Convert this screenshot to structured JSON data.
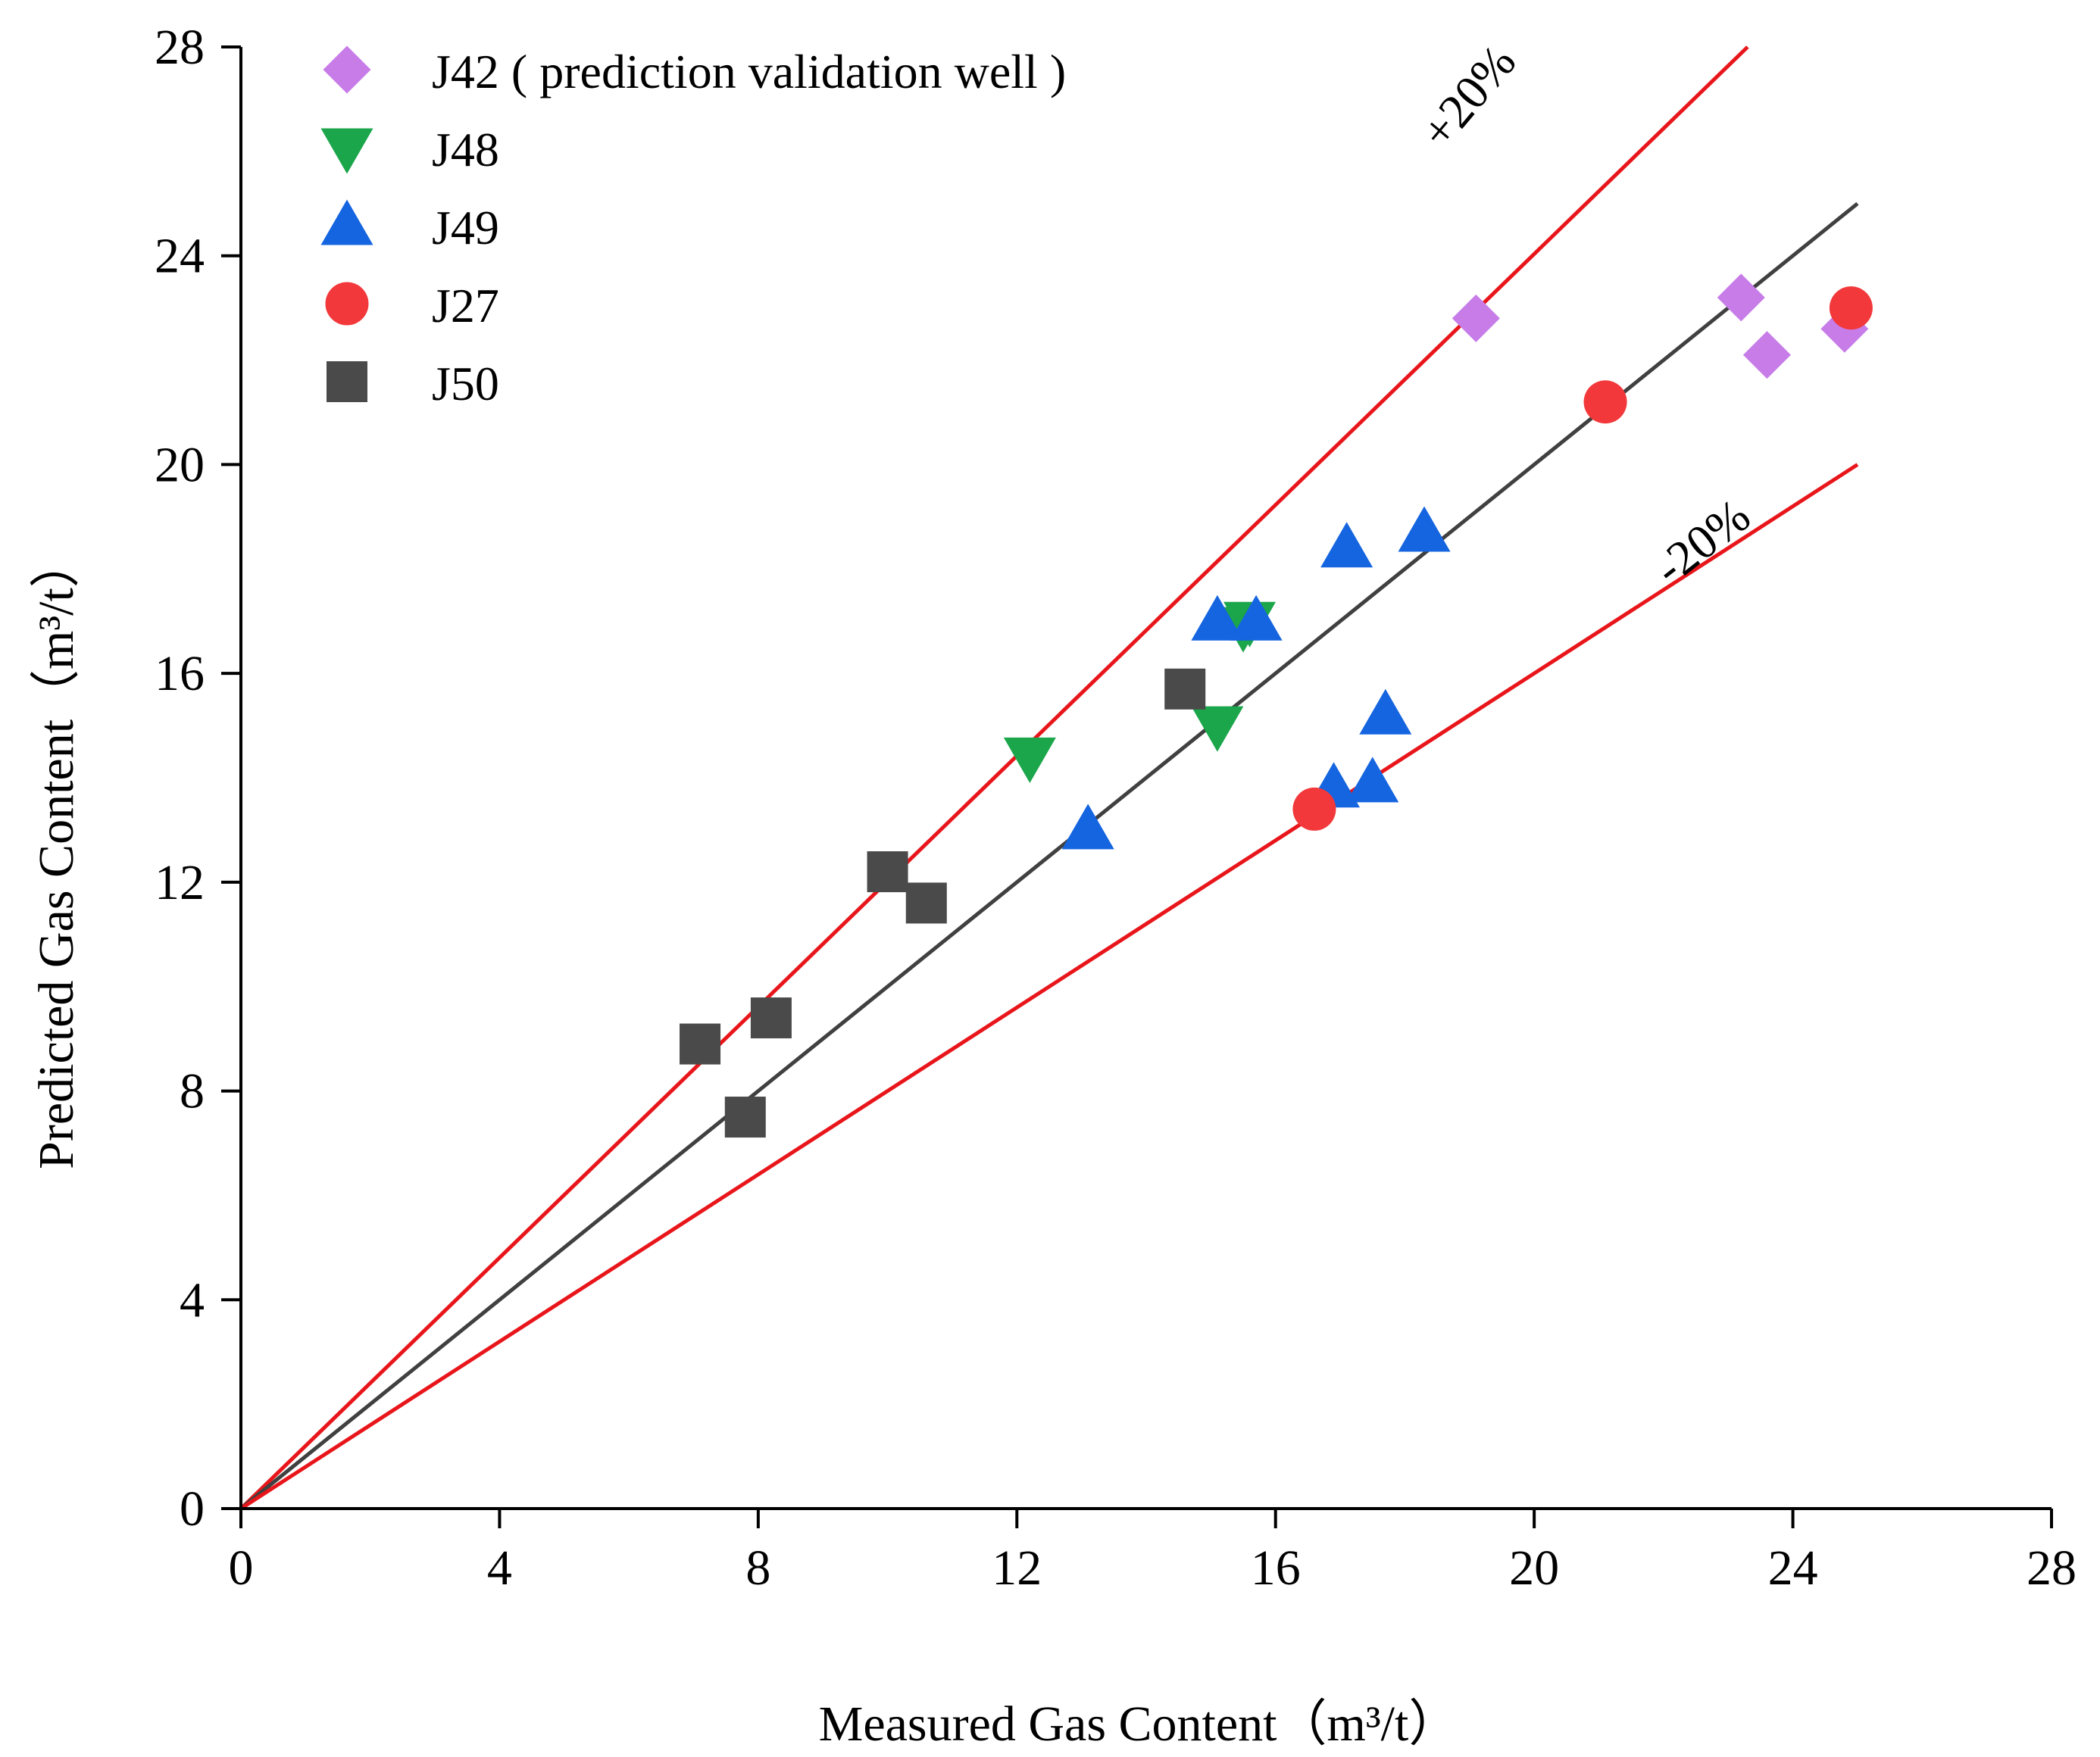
{
  "chart_data": {
    "type": "scatter",
    "title": "",
    "xlabel": "Measured Gas Content（m³/t）",
    "ylabel": "Predicted Gas Content（m³/t）",
    "xlim": [
      0,
      28
    ],
    "ylim": [
      0,
      28
    ],
    "xticks": [
      0,
      4,
      8,
      12,
      16,
      20,
      24,
      28
    ],
    "yticks": [
      0,
      4,
      8,
      12,
      16,
      20,
      24,
      28
    ],
    "legend_position": "top-left",
    "series": [
      {
        "name": "J42 ( prediction validation well )",
        "marker": "diamond",
        "color": "#C77CE8",
        "points": [
          [
            19.1,
            22.8
          ],
          [
            23.2,
            23.2
          ],
          [
            23.6,
            22.1
          ],
          [
            24.8,
            22.6
          ]
        ]
      },
      {
        "name": "J48",
        "marker": "triangle-down",
        "color": "#1BA64B",
        "points": [
          [
            12.2,
            14.4
          ],
          [
            15.1,
            15.0
          ],
          [
            15.6,
            17.0
          ],
          [
            15.5,
            16.9
          ]
        ]
      },
      {
        "name": "J49",
        "marker": "triangle-up",
        "color": "#1565E0",
        "points": [
          [
            13.1,
            13.0
          ],
          [
            15.1,
            17.0
          ],
          [
            15.7,
            17.0
          ],
          [
            17.1,
            18.4
          ],
          [
            18.3,
            18.7
          ],
          [
            17.7,
            15.2
          ],
          [
            16.9,
            13.8
          ],
          [
            17.5,
            13.9
          ]
        ]
      },
      {
        "name": "J27",
        "marker": "circle",
        "color": "#F2383A",
        "points": [
          [
            16.6,
            13.4
          ],
          [
            21.1,
            21.2
          ],
          [
            24.9,
            23.0
          ]
        ]
      },
      {
        "name": "J50",
        "marker": "square",
        "color": "#4A4A4A",
        "points": [
          [
            7.1,
            8.9
          ],
          [
            8.2,
            9.4
          ],
          [
            7.8,
            7.5
          ],
          [
            10.0,
            12.2
          ],
          [
            10.6,
            11.6
          ],
          [
            14.6,
            15.7
          ]
        ]
      }
    ],
    "reference_lines": [
      {
        "name": "upper",
        "label": "+20%",
        "color": "#E8161B",
        "from": [
          0,
          0
        ],
        "to": [
          23.3,
          28
        ]
      },
      {
        "name": "identity",
        "label": "",
        "color": "#404040",
        "from": [
          0,
          0
        ],
        "to": [
          25,
          25
        ]
      },
      {
        "name": "lower",
        "label": "-20%",
        "color": "#E8161B",
        "from": [
          0,
          0
        ],
        "to": [
          25,
          20
        ]
      }
    ]
  },
  "colors": {
    "axis": "#000000",
    "upper_line": "#E8161B",
    "lower_line": "#E8161B",
    "identity_line": "#404040"
  }
}
